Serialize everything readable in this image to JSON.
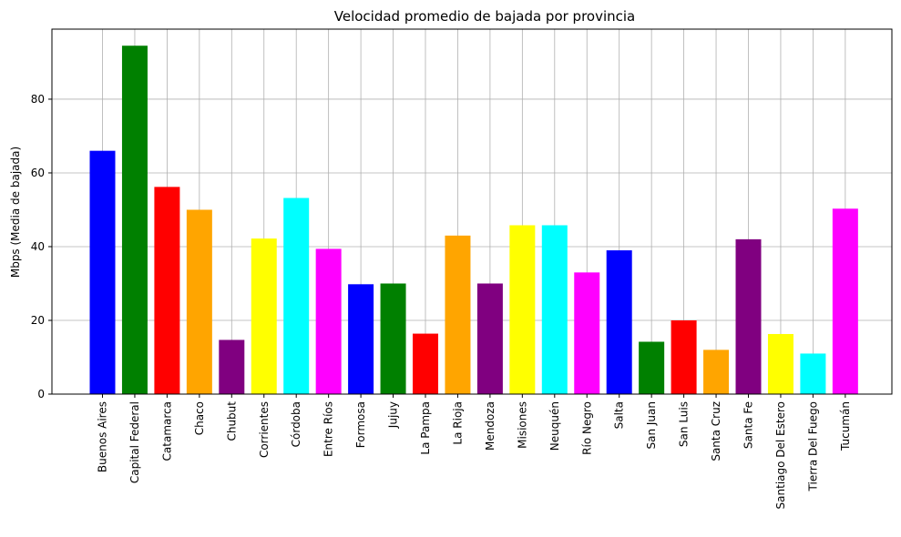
{
  "chart_data": {
    "type": "bar",
    "title": "Velocidad promedio de bajada por provincia",
    "xlabel": "",
    "ylabel": "Mbps (Media de bajada)",
    "ylim": [
      0,
      99
    ],
    "yticks": [
      0,
      20,
      40,
      60,
      80
    ],
    "grid": true,
    "categories": [
      "Buenos Aires",
      "Capital Federal",
      "Catamarca",
      "Chaco",
      "Chubut",
      "Corrientes",
      "Córdoba",
      "Entre Ríos",
      "Formosa",
      "Jujuy",
      "La Pampa",
      "La Rioja",
      "Mendoza",
      "Misiones",
      "Neuquén",
      "Río Negro",
      "Salta",
      "San Juan",
      "San Luis",
      "Santa Cruz",
      "Santa Fe",
      "Santiago Del Estero",
      "Tierra Del Fuego",
      "Tucumán"
    ],
    "values": [
      66,
      94.5,
      56.2,
      50,
      14.7,
      42.2,
      53.2,
      39.4,
      29.8,
      30,
      16.4,
      43,
      30,
      45.8,
      45.8,
      33,
      39,
      14.2,
      20,
      12,
      42,
      16.3,
      11,
      50.3
    ],
    "colors": [
      "#0000ff",
      "#008000",
      "#ff0000",
      "#ffa500",
      "#800080",
      "#ffff00",
      "#00ffff",
      "#ff00ff",
      "#0000ff",
      "#008000",
      "#ff0000",
      "#ffa500",
      "#800080",
      "#ffff00",
      "#00ffff",
      "#ff00ff",
      "#0000ff",
      "#008000",
      "#ff0000",
      "#ffa500",
      "#800080",
      "#ffff00",
      "#00ffff",
      "#ff00ff"
    ]
  }
}
